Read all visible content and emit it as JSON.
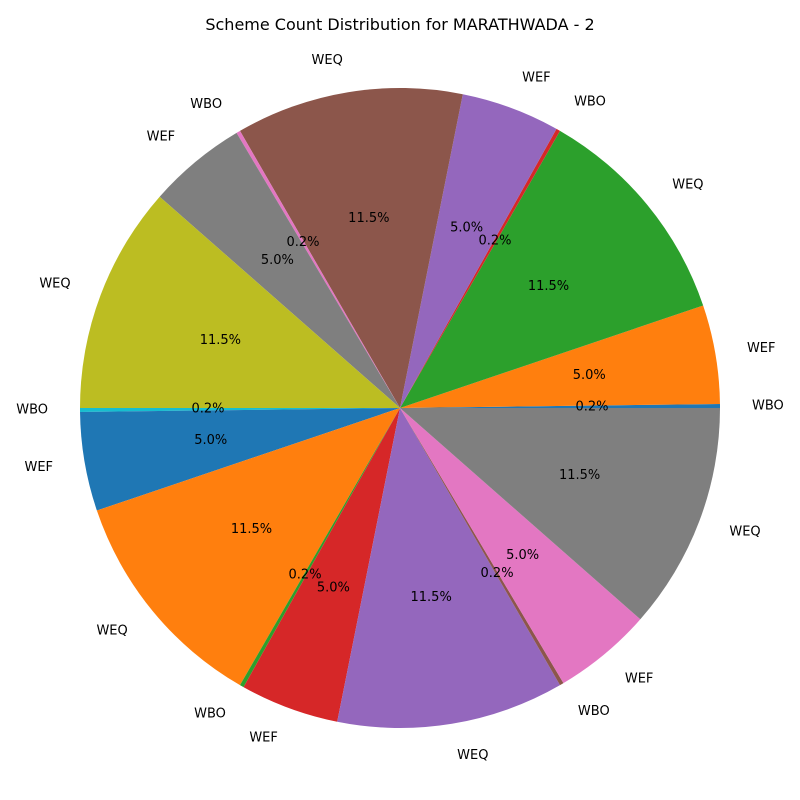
{
  "chart_data": {
    "type": "pie",
    "title": "Scheme Count Distribution for MARATHWADA - 2",
    "start_angle_deg": 0,
    "direction": "counterclockwise",
    "legend": "none",
    "slices": [
      {
        "label": "WBO",
        "value": 0.2,
        "pct_label": "0.2%",
        "color": "#1f77b4"
      },
      {
        "label": "WEF",
        "value": 5.0,
        "pct_label": "5.0%",
        "color": "#ff7f0e"
      },
      {
        "label": "WEQ",
        "value": 11.5,
        "pct_label": "11.5%",
        "color": "#2ca02c"
      },
      {
        "label": "WBO",
        "value": 0.2,
        "pct_label": "0.2%",
        "color": "#d62728"
      },
      {
        "label": "WEF",
        "value": 5.0,
        "pct_label": "5.0%",
        "color": "#9467bd"
      },
      {
        "label": "WEQ",
        "value": 11.5,
        "pct_label": "11.5%",
        "color": "#8c564b"
      },
      {
        "label": "WBO",
        "value": 0.2,
        "pct_label": "0.2%",
        "color": "#e377c2"
      },
      {
        "label": "WEF",
        "value": 5.0,
        "pct_label": "5.0%",
        "color": "#7f7f7f"
      },
      {
        "label": "WEQ",
        "value": 11.5,
        "pct_label": "11.5%",
        "color": "#bcbd22"
      },
      {
        "label": "WBO",
        "value": 0.2,
        "pct_label": "0.2%",
        "color": "#17becf"
      },
      {
        "label": "WEF",
        "value": 5.0,
        "pct_label": "5.0%",
        "color": "#1f77b4"
      },
      {
        "label": "WEQ",
        "value": 11.5,
        "pct_label": "11.5%",
        "color": "#ff7f0e"
      },
      {
        "label": "WBO",
        "value": 0.2,
        "pct_label": "0.2%",
        "color": "#2ca02c"
      },
      {
        "label": "WEF",
        "value": 5.0,
        "pct_label": "5.0%",
        "color": "#d62728"
      },
      {
        "label": "WEQ",
        "value": 11.5,
        "pct_label": "11.5%",
        "color": "#9467bd"
      },
      {
        "label": "WBO",
        "value": 0.2,
        "pct_label": "0.2%",
        "color": "#8c564b"
      },
      {
        "label": "WEF",
        "value": 5.0,
        "pct_label": "5.0%",
        "color": "#e377c2"
      },
      {
        "label": "WEQ",
        "value": 11.5,
        "pct_label": "11.5%",
        "color": "#7f7f7f"
      }
    ]
  }
}
